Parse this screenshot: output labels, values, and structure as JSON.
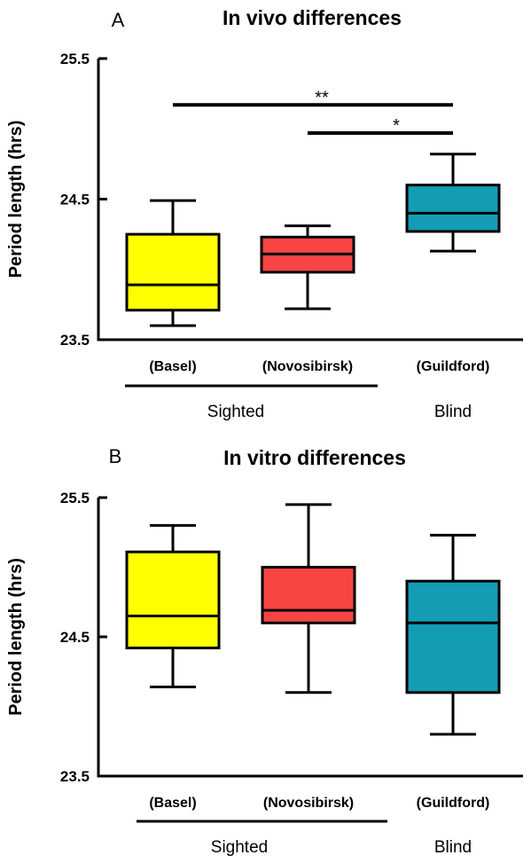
{
  "chart_data": [
    {
      "type": "box",
      "panel_letter": "A",
      "title": "In vivo differences",
      "ylabel": "Period length (hrs)",
      "ylim": [
        23.5,
        25.5
      ],
      "yticks": [
        "23.5",
        "24.5",
        "25.5"
      ],
      "categories": [
        "(Basel)",
        "(Novosibirsk)",
        "(Guildford)"
      ],
      "boxes": [
        {
          "category": "(Basel)",
          "min": 23.6,
          "q1": 23.71,
          "median": 23.89,
          "q3": 24.25,
          "max": 24.49,
          "color": "#FFFF00"
        },
        {
          "category": "(Novosibirsk)",
          "min": 23.72,
          "q1": 23.98,
          "median": 24.11,
          "q3": 24.23,
          "max": 24.31,
          "color": "#F94444"
        },
        {
          "category": "(Guildford)",
          "min": 24.13,
          "q1": 24.27,
          "median": 24.4,
          "q3": 24.6,
          "max": 24.82,
          "color": "#129DB5"
        }
      ],
      "groups": [
        {
          "label": "Sighted",
          "categories": [
            "(Basel)",
            "(Novosibirsk)"
          ]
        },
        {
          "label": "Blind",
          "categories": [
            "(Guildford)"
          ]
        }
      ],
      "significance": [
        {
          "from": "(Basel)",
          "to": "(Guildford)",
          "label": "**",
          "y": 25.17
        },
        {
          "from": "(Novosibirsk)",
          "to": "(Guildford)",
          "label": "*",
          "y": 24.97
        }
      ]
    },
    {
      "type": "box",
      "panel_letter": "B",
      "title": "In vitro differences",
      "ylabel": "Period length (hrs)",
      "ylim": [
        23.5,
        25.5
      ],
      "yticks": [
        "23.5",
        "24.5",
        "25.5"
      ],
      "categories": [
        "(Basel)",
        "(Novosibirsk)",
        "(Guildford)"
      ],
      "boxes": [
        {
          "category": "(Basel)",
          "min": 24.14,
          "q1": 24.42,
          "median": 24.65,
          "q3": 25.11,
          "max": 25.3,
          "color": "#FFFF00"
        },
        {
          "category": "(Novosibirsk)",
          "min": 24.1,
          "q1": 24.6,
          "median": 24.69,
          "q3": 25.0,
          "max": 25.45,
          "color": "#F94444"
        },
        {
          "category": "(Guildford)",
          "min": 23.8,
          "q1": 24.1,
          "median": 24.6,
          "q3": 24.9,
          "max": 25.23,
          "color": "#129DB5"
        }
      ],
      "groups": [
        {
          "label": "Sighted",
          "categories": [
            "(Basel)",
            "(Novosibirsk)"
          ]
        },
        {
          "label": "Blind",
          "categories": [
            "(Guildford)"
          ]
        }
      ],
      "significance": []
    }
  ]
}
